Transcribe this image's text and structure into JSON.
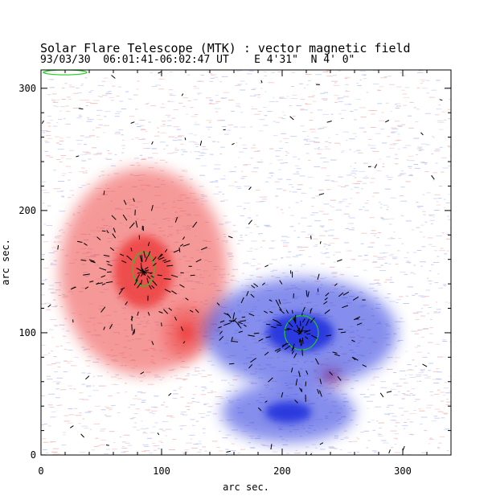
{
  "header": {
    "title": "Solar Flare Telescope (MTK) : vector magnetic field",
    "date": "93/03/30",
    "time_range": "06:01:41-06:02:47 UT",
    "longitude": "E 4'31\"",
    "latitude": "N 4' 0\""
  },
  "axes": {
    "xlabel": "arc sec.",
    "ylabel": "arc sec.",
    "xlim": [
      0,
      340
    ],
    "ylim": [
      0,
      315
    ],
    "xticks": [
      0,
      100,
      200,
      300
    ],
    "yticks": [
      0,
      100,
      200,
      300
    ]
  },
  "colors": {
    "positive": "#ee4444",
    "negative": "#2233dd",
    "contour": "#22cc22",
    "noise_red": "#f3c0c0",
    "noise_blue": "#c0c8f3"
  },
  "chart_data": {
    "type": "heatmap",
    "title": "Solar Flare Telescope (MTK) : vector magnetic field",
    "xlabel": "arc sec.",
    "ylabel": "arc sec.",
    "xlim": [
      0,
      340
    ],
    "ylim": [
      0,
      315
    ],
    "regions": [
      {
        "polarity": "positive",
        "center": [
          85,
          150
        ],
        "extent": [
          [
            20,
            160
          ],
          [
            60,
            230
          ]
        ]
      },
      {
        "polarity": "positive",
        "center": [
          120,
          100
        ],
        "extent": [
          [
            105,
            140
          ],
          [
            80,
            125
          ]
        ]
      },
      {
        "polarity": "positive",
        "center": [
          240,
          65
        ],
        "extent": [
          [
            230,
            250
          ],
          [
            58,
            75
          ]
        ]
      },
      {
        "polarity": "negative",
        "center": [
          215,
          100
        ],
        "extent": [
          [
            140,
            300
          ],
          [
            60,
            150
          ]
        ]
      },
      {
        "polarity": "negative",
        "center": [
          205,
          35
        ],
        "extent": [
          [
            150,
            260
          ],
          [
            10,
            60
          ]
        ]
      }
    ],
    "contours": [
      {
        "center": [
          85,
          152
        ],
        "rx": 9,
        "ry": 14
      },
      {
        "center": [
          216,
          100
        ],
        "rx": 14,
        "ry": 14
      },
      {
        "center": [
          20,
          313
        ],
        "rx": 18,
        "ry": 2
      }
    ]
  }
}
